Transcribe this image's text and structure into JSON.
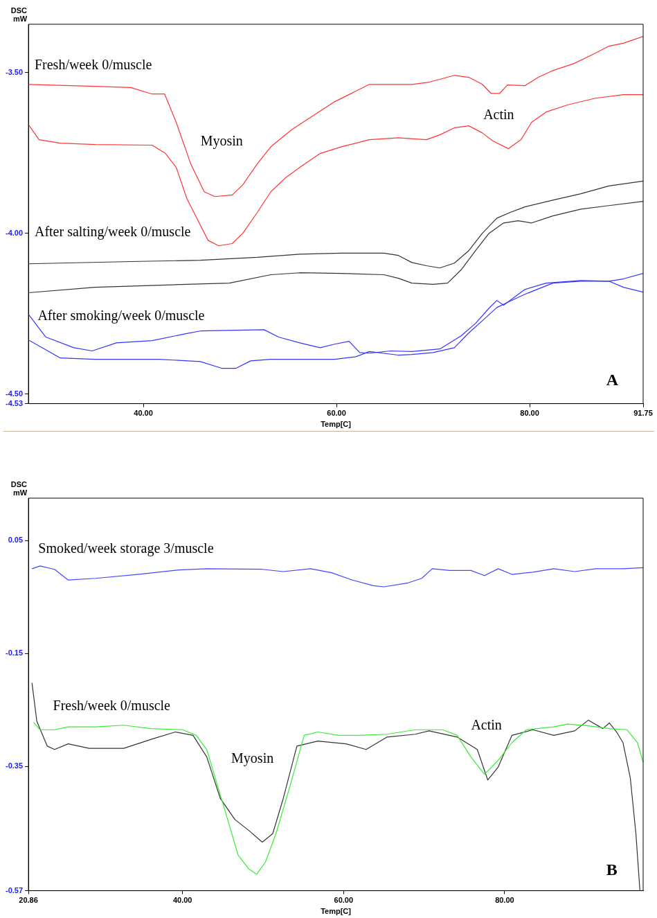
{
  "chart_data": [
    {
      "type": "line",
      "xlabel": "Temp[C]",
      "ylabel": "DSC mW",
      "xlim": [
        28.1,
        91.75
      ],
      "ylim": [
        -4.53,
        -3.35
      ],
      "xticks": [
        {
          "value": 40,
          "label": "40.00"
        },
        {
          "value": 60,
          "label": "60.00"
        },
        {
          "value": 80,
          "label": "80.00"
        },
        {
          "value": 91.75,
          "label": "91.75"
        }
      ],
      "yticks": [
        {
          "value": -3.5,
          "label": "-3.50"
        },
        {
          "value": -4.0,
          "label": "-4.00"
        },
        {
          "value": -4.5,
          "label": "-4.50"
        },
        {
          "value": -4.53,
          "label": "-4.53"
        }
      ],
      "grid": false,
      "legend": false,
      "line_style": "solid",
      "marker": "none",
      "series": [
        {
          "color": "#ff3333",
          "x": [
            28.1,
            35.0,
            38.7,
            40.9,
            42.2,
            43.4,
            44.9,
            46.3,
            47.4,
            49.2,
            50.3,
            51.8,
            53.2,
            55.4,
            57.6,
            59.8,
            62.0,
            63.4,
            67.8,
            69.6,
            72.2,
            73.7,
            75.1,
            76.0,
            76.9,
            77.7,
            79.5,
            80.9,
            82.4,
            84.6,
            86.8,
            88.2,
            89.7,
            91.75
          ],
          "values": [
            -3.537,
            -3.543,
            -3.547,
            -3.567,
            -3.567,
            -3.655,
            -3.784,
            -3.871,
            -3.886,
            -3.881,
            -3.849,
            -3.784,
            -3.731,
            -3.677,
            -3.634,
            -3.591,
            -3.558,
            -3.537,
            -3.537,
            -3.53,
            -3.509,
            -3.515,
            -3.537,
            -3.565,
            -3.565,
            -3.539,
            -3.541,
            -3.515,
            -3.494,
            -3.472,
            -3.44,
            -3.418,
            -3.409,
            -3.388
          ]
        },
        {
          "color": "#ff3333",
          "x": [
            28.1,
            29.2,
            31.4,
            35.0,
            40.9,
            42.3,
            43.4,
            44.5,
            45.6,
            46.7,
            47.8,
            49.2,
            50.3,
            51.8,
            53.2,
            54.7,
            56.2,
            58.3,
            60.5,
            63.4,
            66.4,
            69.3,
            70.7,
            72.2,
            73.7,
            75.1,
            76.2,
            77.8,
            79.1,
            80.2,
            81.7,
            83.9,
            86.8,
            89.7,
            91.75
          ],
          "values": [
            -3.662,
            -3.709,
            -3.72,
            -3.724,
            -3.726,
            -3.752,
            -3.795,
            -3.892,
            -3.957,
            -4.022,
            -4.039,
            -4.032,
            -4.0,
            -3.935,
            -3.871,
            -3.828,
            -3.795,
            -3.752,
            -3.731,
            -3.709,
            -3.703,
            -3.709,
            -3.694,
            -3.672,
            -3.666,
            -3.688,
            -3.713,
            -3.737,
            -3.709,
            -3.655,
            -3.623,
            -3.601,
            -3.58,
            -3.569,
            -3.569
          ]
        },
        {
          "color": "#333333",
          "x": [
            28.1,
            38.7,
            45.9,
            51.8,
            56.2,
            60.5,
            64.9,
            66.4,
            67.8,
            69.3,
            70.7,
            72.2,
            73.7,
            75.1,
            76.6,
            78.0,
            79.5,
            82.4,
            85.3,
            88.2,
            91.75
          ],
          "values": [
            -4.095,
            -4.088,
            -4.084,
            -4.075,
            -4.065,
            -4.062,
            -4.062,
            -4.069,
            -4.091,
            -4.101,
            -4.108,
            -4.093,
            -4.054,
            -4.0,
            -3.953,
            -3.935,
            -3.918,
            -3.897,
            -3.877,
            -3.853,
            -3.838
          ]
        },
        {
          "color": "#333333",
          "x": [
            28.1,
            35.0,
            44.5,
            48.9,
            53.2,
            56.2,
            60.5,
            64.9,
            66.4,
            67.8,
            70.0,
            71.5,
            72.9,
            74.4,
            75.8,
            77.3,
            78.8,
            80.2,
            82.4,
            85.3,
            88.2,
            91.75
          ],
          "values": [
            -4.185,
            -4.168,
            -4.159,
            -4.155,
            -4.129,
            -4.123,
            -4.125,
            -4.129,
            -4.14,
            -4.155,
            -4.159,
            -4.155,
            -4.114,
            -4.054,
            -4.0,
            -3.968,
            -3.961,
            -3.968,
            -3.946,
            -3.925,
            -3.914,
            -3.901
          ]
        },
        {
          "color": "#3333ff",
          "x": [
            28.1,
            29.9,
            32.8,
            34.7,
            37.2,
            40.9,
            44.5,
            45.9,
            52.5,
            54.0,
            56.2,
            58.3,
            59.8,
            61.3,
            62.4,
            63.4,
            65.6,
            67.8,
            70.7,
            72.9,
            74.4,
            75.8,
            76.6,
            77.3,
            79.5,
            81.7,
            85.3,
            88.2,
            89.7,
            91.75
          ],
          "values": [
            -4.252,
            -4.323,
            -4.356,
            -4.366,
            -4.341,
            -4.334,
            -4.312,
            -4.304,
            -4.3,
            -4.323,
            -4.341,
            -4.356,
            -4.345,
            -4.336,
            -4.371,
            -4.373,
            -4.366,
            -4.368,
            -4.36,
            -4.319,
            -4.28,
            -4.233,
            -4.209,
            -4.224,
            -4.175,
            -4.155,
            -4.147,
            -4.149,
            -4.168,
            -4.183
          ]
        },
        {
          "color": "#3333ff",
          "x": [
            28.1,
            31.4,
            35.0,
            41.6,
            45.9,
            48.1,
            49.6,
            51.1,
            53.2,
            59.8,
            62.0,
            63.4,
            66.4,
            67.8,
            70.0,
            72.2,
            73.7,
            75.1,
            76.6,
            78.0,
            79.5,
            82.4,
            85.3,
            88.2,
            89.7,
            91.75
          ],
          "values": [
            -4.332,
            -4.388,
            -4.392,
            -4.392,
            -4.399,
            -4.42,
            -4.42,
            -4.397,
            -4.392,
            -4.392,
            -4.384,
            -4.368,
            -4.379,
            -4.377,
            -4.371,
            -4.356,
            -4.31,
            -4.272,
            -4.231,
            -4.211,
            -4.19,
            -4.155,
            -4.149,
            -4.149,
            -4.142,
            -4.125
          ]
        }
      ],
      "annotations": [
        "Fresh/week 0/muscle",
        "Myosin",
        "Actin",
        "After salting/week 0/muscle",
        "After smoking/week 0/muscle",
        "A"
      ]
    },
    {
      "type": "line",
      "xlabel": "Temp[C]",
      "ylabel": "DSC mW",
      "xlim": [
        20.86,
        97.2
      ],
      "ylim": [
        -0.57,
        0.125
      ],
      "xticks": [
        {
          "value": 20.86,
          "label": "20.86"
        },
        {
          "value": 40,
          "label": "40.00"
        },
        {
          "value": 60,
          "label": "60.00"
        },
        {
          "value": 80,
          "label": "80.00"
        }
      ],
      "yticks": [
        {
          "value": 0.05,
          "label": "0.05"
        },
        {
          "value": -0.15,
          "label": "-0.15"
        },
        {
          "value": -0.35,
          "label": "-0.35"
        },
        {
          "value": -0.57,
          "label": "-0.57"
        }
      ],
      "grid": false,
      "legend": false,
      "line_style": "solid",
      "marker": "none",
      "series": [
        {
          "color": "#4444ff",
          "x": [
            21.3,
            22.3,
            24.1,
            25.8,
            29.2,
            34.4,
            39.6,
            43.0,
            49.9,
            52.5,
            55.9,
            58.5,
            61.1,
            63.7,
            65.0,
            68.0,
            69.7,
            71.0,
            73.2,
            75.8,
            77.5,
            79.2,
            80.9,
            83.5,
            86.1,
            88.7,
            91.3,
            94.7,
            97.2
          ],
          "values": [
            0.0,
            0.005,
            -0.001,
            -0.02,
            -0.017,
            -0.01,
            -0.002,
            0.0,
            -0.001,
            -0.005,
            0.0,
            -0.007,
            -0.02,
            -0.03,
            -0.032,
            -0.025,
            -0.017,
            0.0,
            -0.003,
            -0.003,
            -0.012,
            0.0,
            -0.01,
            -0.006,
            0.0,
            -0.005,
            0.0,
            0.0,
            0.002
          ]
        },
        {
          "color": "#33ee33",
          "x": [
            21.5,
            22.3,
            24.1,
            25.8,
            29.2,
            32.7,
            36.1,
            40.0,
            41.7,
            43.0,
            44.3,
            45.6,
            46.9,
            48.2,
            49.2,
            50.3,
            51.6,
            53.4,
            55.1,
            56.8,
            59.4,
            62.0,
            65.4,
            68.9,
            72.3,
            74.1,
            75.8,
            77.5,
            79.2,
            80.9,
            82.7,
            86.1,
            87.8,
            90.4,
            93.0,
            95.2,
            96.5,
            97.2
          ],
          "values": [
            -0.272,
            -0.285,
            -0.285,
            -0.28,
            -0.28,
            -0.277,
            -0.283,
            -0.285,
            -0.295,
            -0.32,
            -0.382,
            -0.444,
            -0.507,
            -0.531,
            -0.541,
            -0.519,
            -0.469,
            -0.382,
            -0.295,
            -0.289,
            -0.295,
            -0.295,
            -0.293,
            -0.285,
            -0.285,
            -0.295,
            -0.333,
            -0.364,
            -0.339,
            -0.308,
            -0.285,
            -0.28,
            -0.275,
            -0.278,
            -0.283,
            -0.285,
            -0.308,
            -0.343
          ]
        },
        {
          "color": "#333333",
          "x": [
            21.3,
            21.9,
            23.2,
            24.1,
            25.8,
            28.4,
            32.7,
            36.1,
            39.1,
            41.3,
            43.0,
            44.7,
            46.5,
            48.2,
            49.9,
            51.2,
            52.5,
            54.2,
            56.8,
            60.3,
            62.8,
            65.4,
            68.9,
            70.6,
            74.1,
            76.6,
            77.9,
            79.2,
            80.9,
            83.5,
            86.1,
            88.7,
            90.4,
            92.2,
            93.0,
            93.9,
            94.7,
            95.6,
            96.3,
            96.8
          ],
          "values": [
            -0.202,
            -0.27,
            -0.314,
            -0.32,
            -0.31,
            -0.318,
            -0.318,
            -0.302,
            -0.289,
            -0.295,
            -0.333,
            -0.407,
            -0.444,
            -0.463,
            -0.484,
            -0.469,
            -0.407,
            -0.314,
            -0.305,
            -0.31,
            -0.32,
            -0.298,
            -0.293,
            -0.287,
            -0.298,
            -0.32,
            -0.374,
            -0.351,
            -0.295,
            -0.285,
            -0.295,
            -0.287,
            -0.268,
            -0.283,
            -0.273,
            -0.289,
            -0.308,
            -0.37,
            -0.469,
            -0.57
          ]
        }
      ],
      "annotations": [
        "Smoked/week storage 3/muscle",
        "Fresh/week 0/muscle",
        "Myosin",
        "Actin",
        "B"
      ]
    }
  ]
}
